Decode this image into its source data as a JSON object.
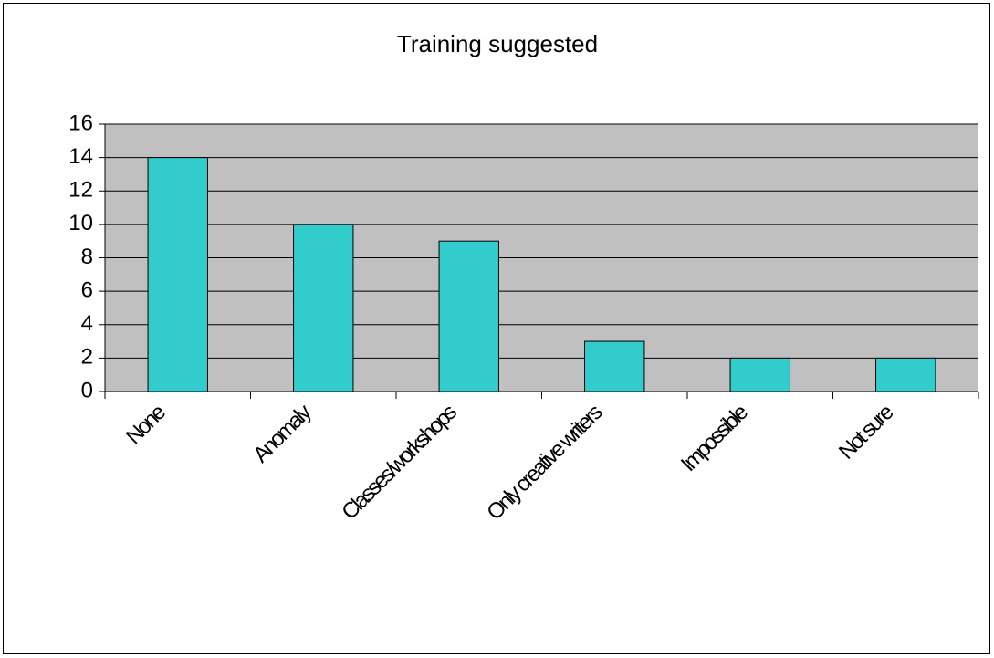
{
  "chart_data": {
    "type": "bar",
    "title": "Training suggested",
    "categories": [
      "None",
      "Anomaly",
      "Classes/workshops",
      "Only creative writers",
      "Impossible",
      "Not sure"
    ],
    "values": [
      14,
      10,
      9,
      3,
      2,
      2
    ],
    "color": "#33cccc",
    "ylim": [
      0,
      16
    ],
    "yticks": [
      0,
      2,
      4,
      6,
      8,
      10,
      12,
      14,
      16
    ],
    "grid": true
  }
}
